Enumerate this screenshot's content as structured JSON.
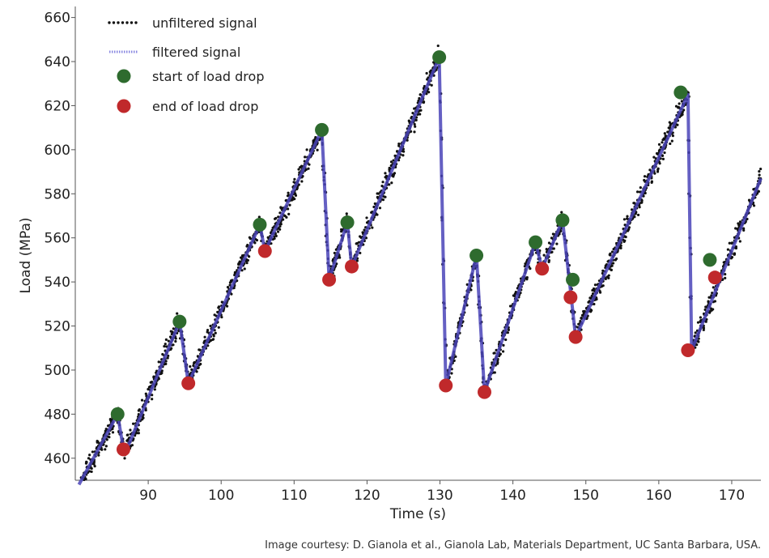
{
  "chart_data": {
    "type": "line",
    "xlabel": "Time (s)",
    "ylabel": "Load (MPa)",
    "xlim": [
      80,
      174
    ],
    "ylim": [
      450,
      665
    ],
    "xticks": [
      90,
      100,
      110,
      120,
      130,
      140,
      150,
      160,
      170
    ],
    "yticks": [
      460,
      480,
      500,
      520,
      540,
      560,
      580,
      600,
      620,
      640,
      660
    ],
    "grid": false,
    "legend_position": "top-left",
    "legend": [
      {
        "label": "unfiltered signal",
        "kind": "dots",
        "color": "#111111"
      },
      {
        "label": "filtered signal",
        "kind": "line",
        "color": "#8a88e0"
      },
      {
        "label": "start of load drop",
        "kind": "marker",
        "color": "#2e6b2e"
      },
      {
        "label": "end of load drop",
        "kind": "marker",
        "color": "#c0292b"
      }
    ],
    "filtered_signal": {
      "name": "filtered signal",
      "color": "#4a44b8",
      "x": [
        80.5,
        85.8,
        86.6,
        87.3,
        94.3,
        95.5,
        105.3,
        106.0,
        113.8,
        114.8,
        117.3,
        117.9,
        129.9,
        130.8,
        135.0,
        136.1,
        143.1,
        144.0,
        146.8,
        148.0,
        148.6,
        164.0,
        164.5,
        174.0
      ],
      "y": [
        448,
        480,
        464,
        466,
        522,
        494,
        566,
        554,
        609,
        541,
        567,
        547,
        642,
        493,
        552,
        490,
        558,
        546,
        568,
        533,
        515,
        625,
        509,
        587
      ]
    },
    "start_of_load_drop": {
      "x": [
        85.8,
        94.3,
        105.3,
        113.8,
        117.3,
        129.9,
        135.0,
        143.1,
        146.8,
        148.2,
        163.0,
        167.0
      ],
      "y": [
        480,
        522,
        566,
        609,
        567,
        642,
        552,
        558,
        568,
        541,
        626,
        550
      ]
    },
    "end_of_load_drop": {
      "x": [
        86.6,
        95.5,
        106.0,
        114.8,
        117.9,
        130.8,
        136.1,
        144.0,
        147.9,
        148.6,
        164.0,
        167.7
      ],
      "y": [
        464,
        494,
        554,
        541,
        547,
        493,
        490,
        546,
        533,
        515,
        509,
        542
      ]
    }
  },
  "caption": "Image courtesy: D. Gianola et al., Gianola Lab, Materials Department, UC Santa Barbara, USA."
}
